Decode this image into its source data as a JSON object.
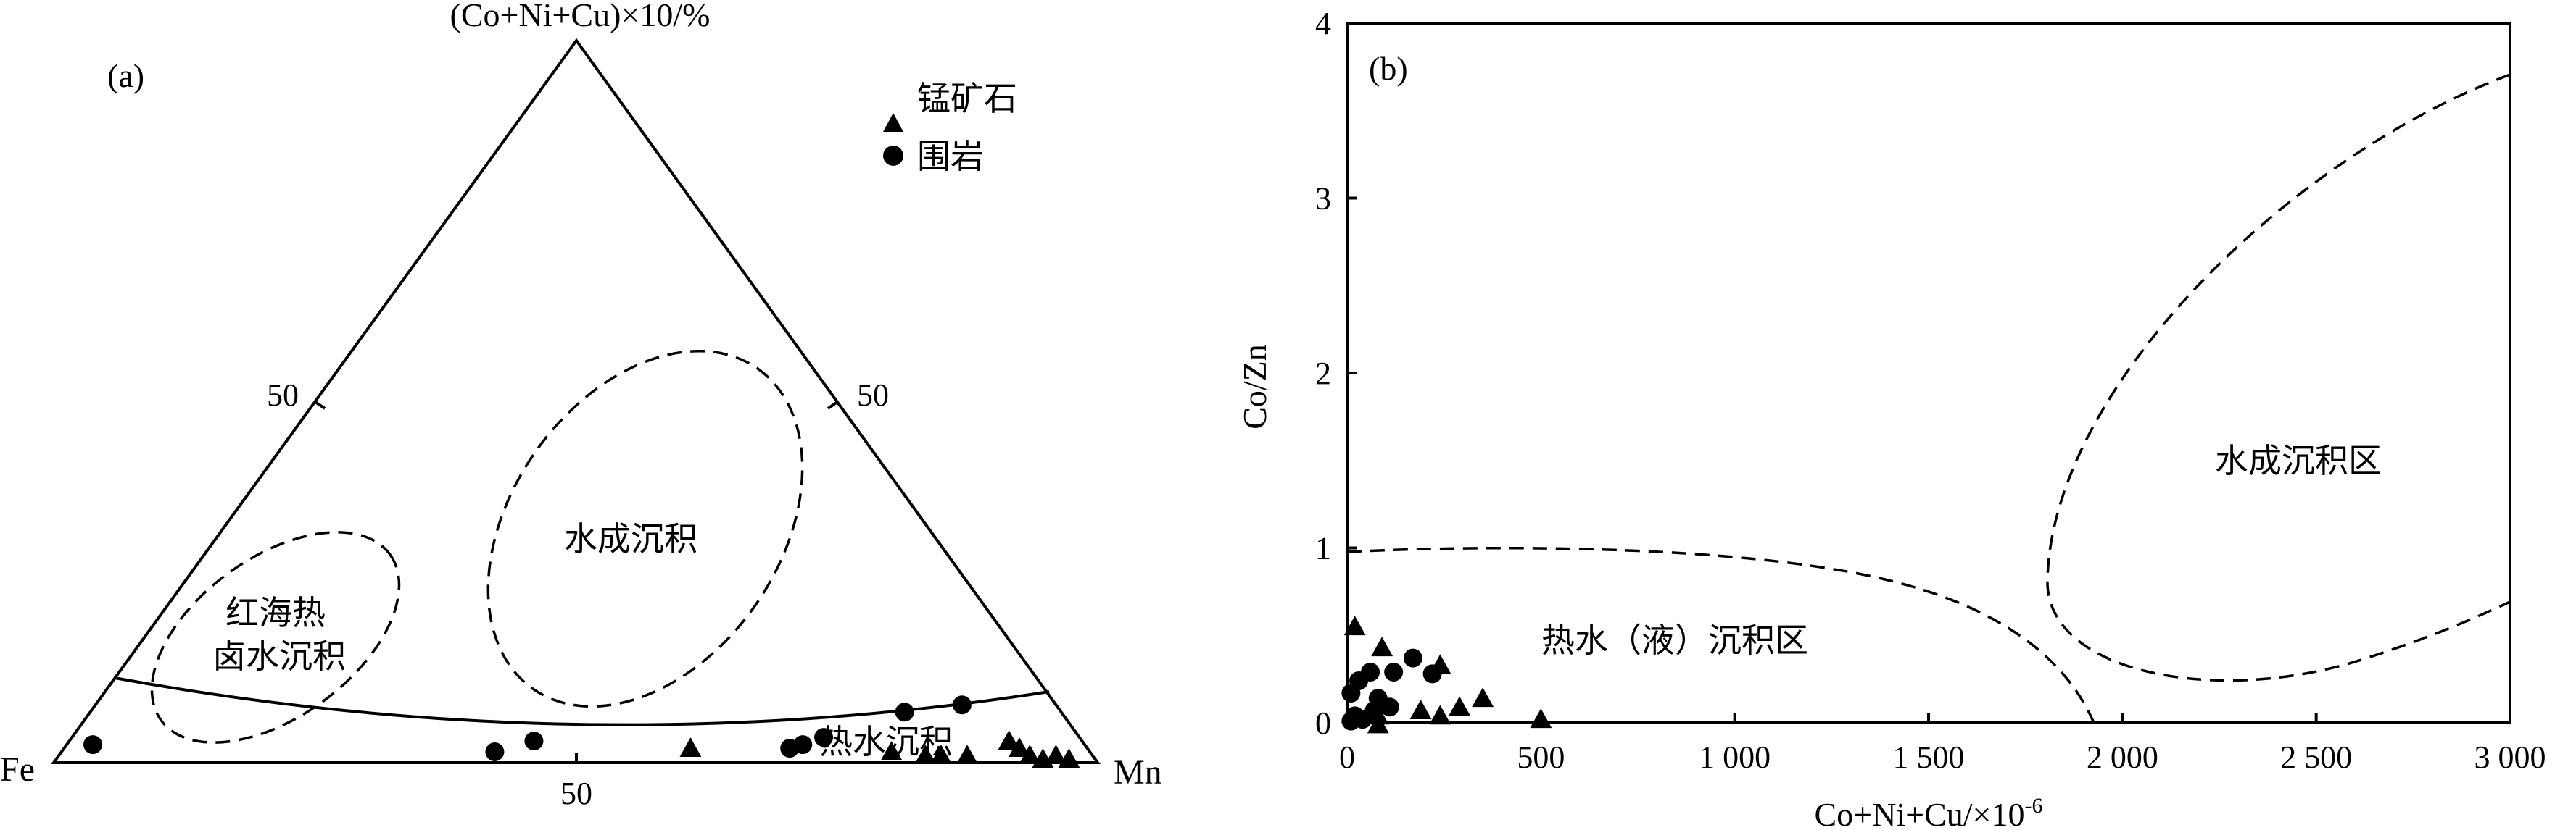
{
  "chart_data": [
    {
      "panel_label": "(a)",
      "type": "scatter",
      "subtype": "ternary",
      "apex_top_label": "(Co+Ni+Cu)×10/%",
      "corner_left_label": "Fe",
      "corner_right_label": "Mn",
      "tick_labels": {
        "left_edge": "50",
        "right_edge": "50",
        "bottom_edge": "50"
      },
      "legend": {
        "position": "top-right",
        "entries": [
          {
            "marker": "triangle",
            "label": "锰矿石"
          },
          {
            "marker": "circle",
            "label": "围岩"
          }
        ]
      },
      "fields": [
        {
          "name": "红海热卤水沉积",
          "lines": [
            "红海热",
            "卤水沉积"
          ],
          "boundary": "dashed"
        },
        {
          "name": "水成沉积",
          "lines": [
            "水成沉积"
          ],
          "boundary": "dashed"
        },
        {
          "name": "热水沉积",
          "lines": [
            "热水沉积"
          ],
          "boundary": "solid"
        }
      ],
      "units": "composition %, (Fe, Mn, Co+Ni+Cu×10)",
      "series": [
        {
          "name": "锰矿石",
          "marker": "triangle",
          "points": [
            {
              "fe": 38,
              "mn": 60,
              "cnc": 2
            },
            {
              "fe": 19,
              "mn": 79.5,
              "cnc": 1.5
            },
            {
              "fe": 16,
              "mn": 83,
              "cnc": 1
            },
            {
              "fe": 14.5,
              "mn": 84.5,
              "cnc": 1
            },
            {
              "fe": 12,
              "mn": 87,
              "cnc": 1
            },
            {
              "fe": 7,
              "mn": 90,
              "cnc": 3
            },
            {
              "fe": 6.5,
              "mn": 91.5,
              "cnc": 2
            },
            {
              "fe": 6,
              "mn": 93,
              "cnc": 1
            },
            {
              "fe": 5,
              "mn": 94.5,
              "cnc": 0.5
            },
            {
              "fe": 3.5,
              "mn": 95.5,
              "cnc": 1
            },
            {
              "fe": 2.5,
              "mn": 97,
              "cnc": 0.5
            }
          ]
        },
        {
          "name": "围岩",
          "marker": "circle",
          "points": [
            {
              "fe": 95,
              "mn": 2.5,
              "cnc": 2.5
            },
            {
              "fe": 57,
              "mn": 41.5,
              "cnc": 1.5
            },
            {
              "fe": 52.5,
              "mn": 44.5,
              "cnc": 3
            },
            {
              "fe": 28.5,
              "mn": 69.5,
              "cnc": 2
            },
            {
              "fe": 27,
              "mn": 70.5,
              "cnc": 2.5
            },
            {
              "fe": 24.5,
              "mn": 72,
              "cnc": 3.5
            },
            {
              "fe": 15,
              "mn": 78,
              "cnc": 7
            },
            {
              "fe": 9,
              "mn": 83,
              "cnc": 8
            }
          ]
        }
      ]
    },
    {
      "panel_label": "(b)",
      "type": "scatter",
      "xlabel": "Co+Ni+Cu/×10",
      "xlabel_sup": "-6",
      "ylabel": "Co/Zn",
      "xlim": [
        0,
        3000
      ],
      "ylim": [
        0,
        4
      ],
      "xticks": [
        0,
        500,
        1000,
        1500,
        2000,
        2500,
        3000
      ],
      "xtick_labels": [
        "0",
        "500",
        "1 000",
        "1 500",
        "2 000",
        "2 500",
        "3 000"
      ],
      "yticks": [
        0,
        1,
        2,
        3,
        4
      ],
      "ytick_labels": [
        "0",
        "1",
        "2",
        "3",
        "4"
      ],
      "grid": false,
      "regions": [
        {
          "name": "热水（液）沉积区",
          "boundary": "dashed"
        },
        {
          "name": "水成沉积区",
          "boundary": "dashed"
        }
      ],
      "series": [
        {
          "name": "锰矿石",
          "marker": "triangle",
          "points": [
            [
              20,
              0.55
            ],
            [
              90,
              0.43
            ],
            [
              240,
              0.33
            ],
            [
              350,
              0.14
            ],
            [
              290,
              0.09
            ],
            [
              190,
              0.07
            ],
            [
              240,
              0.04
            ],
            [
              80,
              0.04
            ],
            [
              500,
              0.02
            ],
            [
              80,
              -0.01
            ]
          ]
        },
        {
          "name": "围岩",
          "marker": "circle",
          "points": [
            [
              10,
              0.17
            ],
            [
              30,
              0.24
            ],
            [
              60,
              0.29
            ],
            [
              80,
              0.14
            ],
            [
              120,
              0.29
            ],
            [
              170,
              0.37
            ],
            [
              220,
              0.28
            ],
            [
              110,
              0.09
            ],
            [
              70,
              0.07
            ],
            [
              20,
              0.04
            ],
            [
              40,
              0.02
            ],
            [
              10,
              0.01
            ]
          ]
        }
      ]
    }
  ]
}
